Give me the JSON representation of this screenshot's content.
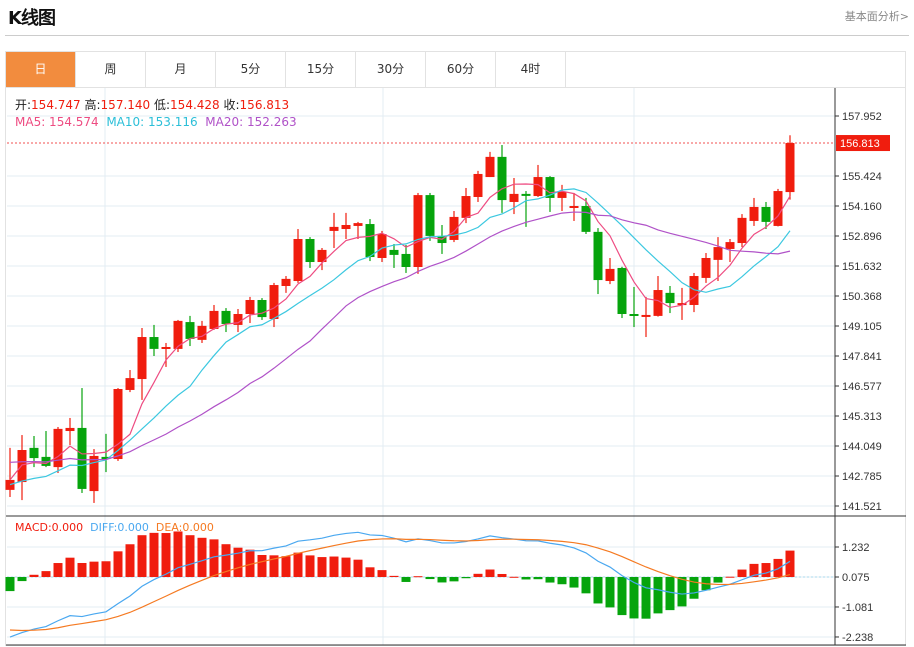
{
  "header": {
    "title": "K线图",
    "link": "基本面分析>"
  },
  "tabs": [
    {
      "label": "日",
      "active": true
    },
    {
      "label": "周"
    },
    {
      "label": "月"
    },
    {
      "label": "5分"
    },
    {
      "label": "15分"
    },
    {
      "label": "30分"
    },
    {
      "label": "60分"
    },
    {
      "label": "4时"
    }
  ],
  "ohlc_info": {
    "open_label": "开:",
    "open": "154.747",
    "high_label": "高:",
    "high": "157.140",
    "low_label": "低:",
    "low": "154.428",
    "close_label": "收:",
    "close": "156.813"
  },
  "ma_info": {
    "ma5": "MA5: 154.574",
    "ma10": "MA10: 153.116",
    "ma20": "MA20: 152.263"
  },
  "macd_info": {
    "macd": "MACD:0.000",
    "diff": "DIFF:0.000",
    "dea": "DEA:0.000"
  },
  "colors": {
    "up": "#f01d0e",
    "down": "#06a40c",
    "ma5": "#ee4c82",
    "ma10": "#3cc8e0",
    "ma20": "#b052c8",
    "diff": "#4aa8f0",
    "dea": "#f57a22",
    "active_tab": "#f28c3e"
  },
  "chart_data": {
    "type": "candlestick",
    "price_axis": {
      "ticks": [
        "157.952",
        "155.424",
        "154.160",
        "152.896",
        "151.632",
        "150.368",
        "149.105",
        "147.841",
        "146.577",
        "145.313",
        "144.049",
        "142.785",
        "141.521"
      ],
      "range": [
        141.521,
        157.952
      ]
    },
    "last_price": "156.813",
    "macd_axis": {
      "ticks": [
        "1.232",
        "0.075",
        "-1.081",
        "-2.238"
      ],
      "range": [
        -2.238,
        1.232
      ]
    },
    "candles": [
      [
        142.2,
        143.97,
        141.9,
        142.62
      ],
      [
        142.53,
        144.51,
        141.77,
        143.88
      ],
      [
        143.97,
        144.47,
        143.16,
        143.54
      ],
      [
        143.59,
        144.68,
        143.16,
        143.21
      ],
      [
        143.16,
        144.85,
        142.91,
        144.77
      ],
      [
        144.68,
        145.23,
        144.09,
        144.81
      ],
      [
        144.81,
        146.49,
        142.07,
        142.24
      ],
      [
        142.15,
        143.92,
        141.65,
        143.63
      ],
      [
        143.59,
        144.56,
        142.95,
        143.5
      ],
      [
        143.5,
        146.49,
        143.42,
        146.45
      ],
      [
        146.41,
        147.25,
        146.32,
        146.91
      ],
      [
        146.87,
        149.02,
        145.99,
        148.64
      ],
      [
        148.64,
        149.15,
        147.84,
        148.14
      ],
      [
        148.14,
        148.39,
        147.38,
        148.22
      ],
      [
        148.14,
        149.36,
        148.01,
        149.32
      ],
      [
        149.27,
        149.53,
        148.26,
        148.56
      ],
      [
        148.52,
        149.32,
        148.39,
        149.11
      ],
      [
        148.98,
        149.99,
        148.94,
        149.74
      ],
      [
        149.74,
        149.86,
        148.85,
        149.19
      ],
      [
        149.15,
        149.82,
        148.85,
        149.61
      ],
      [
        149.61,
        150.33,
        149.23,
        150.2
      ],
      [
        150.2,
        150.28,
        149.36,
        149.48
      ],
      [
        149.4,
        150.92,
        149.06,
        150.83
      ],
      [
        150.79,
        151.21,
        150.5,
        151.09
      ],
      [
        151.0,
        153.19,
        150.92,
        152.77
      ],
      [
        152.77,
        152.85,
        151.55,
        151.8
      ],
      [
        151.8,
        152.39,
        151.46,
        152.31
      ],
      [
        153.11,
        153.87,
        152.39,
        153.28
      ],
      [
        153.19,
        153.87,
        152.77,
        153.36
      ],
      [
        153.32,
        153.49,
        152.77,
        153.44
      ],
      [
        153.4,
        153.61,
        151.84,
        152.01
      ],
      [
        151.97,
        153.11,
        151.8,
        152.98
      ],
      [
        152.31,
        152.56,
        151.55,
        152.1
      ],
      [
        152.14,
        152.52,
        151.34,
        151.59
      ],
      [
        151.59,
        154.71,
        151.3,
        154.62
      ],
      [
        154.62,
        154.71,
        152.69,
        152.9
      ],
      [
        152.9,
        153.36,
        152.14,
        152.6
      ],
      [
        152.73,
        153.95,
        152.64,
        153.7
      ],
      [
        153.66,
        154.92,
        153.44,
        154.58
      ],
      [
        154.54,
        155.64,
        154.33,
        155.51
      ],
      [
        155.38,
        156.44,
        155.38,
        156.23
      ],
      [
        156.23,
        156.73,
        153.87,
        154.41
      ],
      [
        154.33,
        155.34,
        153.82,
        154.67
      ],
      [
        154.67,
        154.79,
        153.28,
        154.62
      ],
      [
        154.58,
        155.89,
        154.54,
        155.38
      ],
      [
        155.38,
        155.42,
        153.91,
        154.5
      ],
      [
        154.5,
        155.05,
        153.95,
        154.75
      ],
      [
        154.08,
        154.71,
        153.53,
        154.16
      ],
      [
        154.16,
        154.5,
        152.98,
        153.07
      ],
      [
        153.07,
        153.23,
        150.45,
        151.04
      ],
      [
        151.0,
        151.97,
        150.87,
        151.51
      ],
      [
        151.55,
        151.6,
        149.44,
        149.61
      ],
      [
        149.61,
        150.75,
        149.06,
        149.57
      ],
      [
        149.53,
        150.33,
        148.64,
        149.57
      ],
      [
        149.53,
        151.21,
        149.5,
        150.62
      ],
      [
        150.5,
        150.79,
        149.65,
        150.07
      ],
      [
        149.99,
        150.71,
        149.36,
        150.07
      ],
      [
        149.99,
        151.34,
        149.69,
        151.21
      ],
      [
        151.13,
        152.18,
        150.92,
        151.97
      ],
      [
        151.89,
        152.85,
        151.0,
        152.43
      ],
      [
        152.35,
        152.77,
        151.8,
        152.64
      ],
      [
        152.6,
        153.82,
        152.43,
        153.66
      ],
      [
        153.53,
        154.5,
        153.32,
        154.12
      ],
      [
        154.12,
        154.33,
        153.19,
        153.49
      ],
      [
        153.32,
        154.88,
        153.3,
        154.79
      ],
      [
        154.747,
        157.14,
        154.428,
        156.813
      ]
    ]
  }
}
